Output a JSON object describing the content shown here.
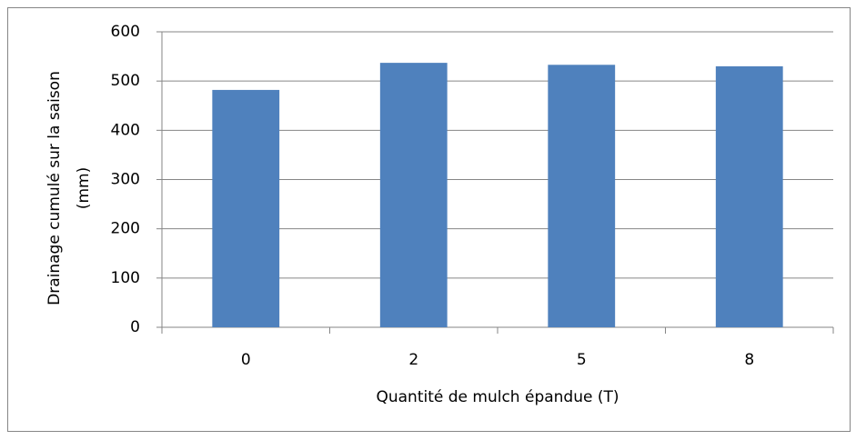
{
  "chart_data": {
    "type": "bar",
    "categories": [
      "0",
      "2",
      "5",
      "8"
    ],
    "values": [
      482,
      537,
      533,
      530
    ],
    "color": "#4f81bd",
    "ylim": [
      0,
      600
    ],
    "yticks": [
      0,
      100,
      200,
      300,
      400,
      500,
      600
    ],
    "grid": true,
    "xlabel": "Quantité de mulch épandue (T)",
    "ylabel": [
      "Drainage cumulé sur la saison",
      "(mm)"
    ]
  }
}
